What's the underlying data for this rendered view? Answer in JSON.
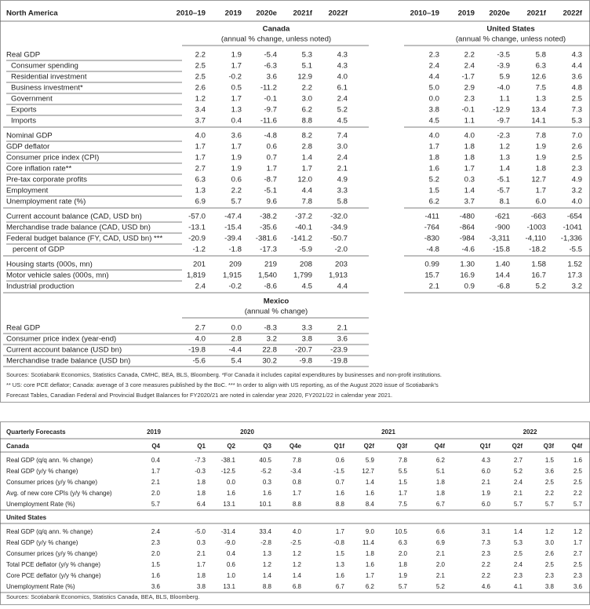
{
  "north_america": {
    "title": "North America",
    "columns": [
      "2010–19",
      "2019",
      "2020e",
      "2021f",
      "2022f"
    ],
    "canada": {
      "title": "Canada",
      "subtitle": "(annual % change, unless noted)"
    },
    "united_states": {
      "title": "United States",
      "subtitle": "(annual % change, unless noted)"
    },
    "groups": [
      [
        {
          "label": "Real GDP",
          "canada": [
            "2.2",
            "1.9",
            "-5.4",
            "5.3",
            "4.3"
          ],
          "us": [
            "2.3",
            "2.2",
            "-3.5",
            "5.8",
            "4.3"
          ]
        },
        {
          "label": "Consumer spending",
          "canada": [
            "2.5",
            "1.7",
            "-6.3",
            "5.1",
            "4.3"
          ],
          "us": [
            "2.4",
            "2.4",
            "-3.9",
            "6.3",
            "4.4"
          ]
        },
        {
          "label": "Residential investment",
          "canada": [
            "2.5",
            "-0.2",
            "3.6",
            "12.9",
            "4.0"
          ],
          "us": [
            "4.4",
            "-1.7",
            "5.9",
            "12.6",
            "3.6"
          ]
        },
        {
          "label": "Business investment*",
          "canada": [
            "2.6",
            "0.5",
            "-11.2",
            "2.2",
            "6.1"
          ],
          "us": [
            "5.0",
            "2.9",
            "-4.0",
            "7.5",
            "4.8"
          ]
        },
        {
          "label": "Government",
          "canada": [
            "1.2",
            "1.7",
            "-0.1",
            "3.0",
            "2.4"
          ],
          "us": [
            "0.0",
            "2.3",
            "1.1",
            "1.3",
            "2.5"
          ]
        },
        {
          "label": "Exports",
          "canada": [
            "3.4",
            "1.3",
            "-9.7",
            "6.2",
            "5.2"
          ],
          "us": [
            "3.8",
            "-0.1",
            "-12.9",
            "13.4",
            "7.3"
          ]
        },
        {
          "label": "Imports",
          "canada": [
            "3.7",
            "0.4",
            "-11.6",
            "8.8",
            "4.5"
          ],
          "us": [
            "4.5",
            "1.1",
            "-9.7",
            "14.1",
            "5.3"
          ]
        }
      ],
      [
        {
          "label": "Nominal GDP",
          "canada": [
            "4.0",
            "3.6",
            "-4.8",
            "8.2",
            "7.4"
          ],
          "us": [
            "4.0",
            "4.0",
            "-2.3",
            "7.8",
            "7.0"
          ]
        },
        {
          "label": "GDP deflator",
          "canada": [
            "1.7",
            "1.7",
            "0.6",
            "2.8",
            "3.0"
          ],
          "us": [
            "1.7",
            "1.8",
            "1.2",
            "1.9",
            "2.6"
          ]
        },
        {
          "label": "Consumer price index (CPI)",
          "canada": [
            "1.7",
            "1.9",
            "0.7",
            "1.4",
            "2.4"
          ],
          "us": [
            "1.8",
            "1.8",
            "1.3",
            "1.9",
            "2.5"
          ]
        },
        {
          "label": "Core inflation rate**",
          "canada": [
            "2.7",
            "1.9",
            "1.7",
            "1.7",
            "2.1"
          ],
          "us": [
            "1.6",
            "1.7",
            "1.4",
            "1.8",
            "2.3"
          ]
        },
        {
          "label": "Pre-tax corporate profits",
          "canada": [
            "6.3",
            "0.6",
            "-8.7",
            "12.0",
            "4.9"
          ],
          "us": [
            "5.2",
            "0.3",
            "-5.1",
            "12.7",
            "4.9"
          ]
        },
        {
          "label": "Employment",
          "canada": [
            "1.3",
            "2.2",
            "-5.1",
            "4.4",
            "3.3"
          ],
          "us": [
            "1.5",
            "1.4",
            "-5.7",
            "1.7",
            "3.2"
          ]
        },
        {
          "label": "Unemployment rate (%)",
          "canada": [
            "6.9",
            "5.7",
            "9.6",
            "7.8",
            "5.8"
          ],
          "us": [
            "6.2",
            "3.7",
            "8.1",
            "6.0",
            "4.0"
          ]
        }
      ],
      [
        {
          "label": "Current account balance (CAD, USD bn)",
          "canada": [
            "-57.0",
            "-47.4",
            "-38.2",
            "-37.2",
            "-32.0"
          ],
          "us": [
            "-411",
            "-480",
            "-621",
            "-663",
            "-654"
          ]
        },
        {
          "label": "Merchandise trade balance (CAD, USD bn)",
          "canada": [
            "-13.1",
            "-15.4",
            "-35.6",
            "-40.1",
            "-34.9"
          ],
          "us": [
            "-764",
            "-864",
            "-900",
            "-1003",
            "-1041"
          ]
        },
        {
          "label": "Federal budget balance (FY, CAD, USD bn) ***",
          "canada": [
            "-20.9",
            "-39.4",
            "-381.6",
            "-141.2",
            "-50.7"
          ],
          "us": [
            "-830",
            "-984",
            "-3,311",
            "-4,110",
            "-1,336"
          ]
        },
        {
          "label": "percent of GDP",
          "canada": [
            "-1.2",
            "-1.8",
            "-17.3",
            "-5.9",
            "-2.0"
          ],
          "us": [
            "-4.8",
            "-4.6",
            "-15.8",
            "-18.2",
            "-5.5"
          ]
        }
      ],
      [
        {
          "label": "Housing starts (000s, mn)",
          "canada": [
            "201",
            "209",
            "219",
            "208",
            "203"
          ],
          "us": [
            "0.99",
            "1.30",
            "1.40",
            "1.58",
            "1.52"
          ]
        },
        {
          "label": "Motor vehicle sales (000s, mn)",
          "canada": [
            "1,819",
            "1,915",
            "1,540",
            "1,799",
            "1,913"
          ],
          "us": [
            "15.7",
            "16.9",
            "14.4",
            "16.7",
            "17.3"
          ]
        },
        {
          "label": "Industrial production",
          "canada": [
            "2.4",
            "-0.2",
            "-8.6",
            "4.5",
            "4.4"
          ],
          "us": [
            "2.1",
            "0.9",
            "-6.8",
            "5.2",
            "3.2"
          ]
        }
      ]
    ],
    "mexico": {
      "title": "Mexico",
      "subtitle": "(annual % change)",
      "rows": [
        {
          "label": "Real GDP",
          "values": [
            "2.7",
            "0.0",
            "-8.3",
            "3.3",
            "2.1"
          ]
        },
        {
          "label": "Consumer price index (year-end)",
          "values": [
            "4.0",
            "2.8",
            "3.2",
            "3.8",
            "3.6"
          ]
        },
        {
          "label": "Current account balance (USD bn)",
          "values": [
            "-19.8",
            "-4.4",
            "22.8",
            "-20.7",
            "-23.9"
          ]
        },
        {
          "label": "Merchandise trade balance (USD bn)",
          "values": [
            "-5.6",
            "5.4",
            "30.2",
            "-9.8",
            "-19.8"
          ]
        }
      ]
    },
    "notes": [
      "Sources: Scotiabank Economics, Statistics Canada, CMHC, BEA, BLS, Bloomberg. *For Canada it includes capital expenditures by businesses and non-profit institutions.",
      "** US: core PCE deflator; Canada: average of 3 core measures published by the BoC. *** In order to align with US reporting, as of the August 2020 issue of Scotiabank's",
      "Forecast Tables, Canadian Federal and Provincial Budget Balances for FY2020/21 are noted in calendar year 2020, FY2021/22 in calendar year 2021."
    ]
  },
  "quarterly": {
    "title": "Quarterly Forecasts",
    "years": [
      "2019",
      "2020",
      "2021",
      "2022"
    ],
    "quarters": [
      "Q4",
      "Q1",
      "Q2",
      "Q3",
      "Q4e",
      "Q1f",
      "Q2f",
      "Q3f",
      "Q4f",
      "Q1f",
      "Q2f",
      "Q3f",
      "Q4f"
    ],
    "sections": [
      {
        "title": "Canada",
        "rows": [
          {
            "label": "Real GDP (q/q ann. % change)",
            "values": [
              "0.4",
              "-7.3",
              "-38.1",
              "40.5",
              "7.8",
              "0.6",
              "5.9",
              "7.8",
              "6.2",
              "4.3",
              "2.7",
              "1.5",
              "1.6"
            ]
          },
          {
            "label": "Real GDP (y/y % change)",
            "values": [
              "1.7",
              "-0.3",
              "-12.5",
              "-5.2",
              "-3.4",
              "-1.5",
              "12.7",
              "5.5",
              "5.1",
              "6.0",
              "5.2",
              "3.6",
              "2.5"
            ]
          },
          {
            "label": "Consumer prices (y/y % change)",
            "values": [
              "2.1",
              "1.8",
              "0.0",
              "0.3",
              "0.8",
              "0.7",
              "1.4",
              "1.5",
              "1.8",
              "2.1",
              "2.4",
              "2.5",
              "2.5"
            ]
          },
          {
            "label": "Avg. of new core CPIs (y/y % change)",
            "values": [
              "2.0",
              "1.8",
              "1.6",
              "1.6",
              "1.7",
              "1.6",
              "1.6",
              "1.7",
              "1.8",
              "1.9",
              "2.1",
              "2.2",
              "2.2"
            ]
          },
          {
            "label": "Unemployment Rate (%)",
            "values": [
              "5.7",
              "6.4",
              "13.1",
              "10.1",
              "8.8",
              "8.8",
              "8.4",
              "7.5",
              "6.7",
              "6.0",
              "5.7",
              "5.7",
              "5.7"
            ]
          }
        ]
      },
      {
        "title": "United States",
        "rows": [
          {
            "label": "Real GDP (q/q ann. % change)",
            "values": [
              "2.4",
              "-5.0",
              "-31.4",
              "33.4",
              "4.0",
              "1.7",
              "9.0",
              "10.5",
              "6.6",
              "3.1",
              "1.4",
              "1.2",
              "1.2"
            ]
          },
          {
            "label": "Real GDP (y/y % change)",
            "values": [
              "2.3",
              "0.3",
              "-9.0",
              "-2.8",
              "-2.5",
              "-0.8",
              "11.4",
              "6.3",
              "6.9",
              "7.3",
              "5.3",
              "3.0",
              "1.7"
            ]
          },
          {
            "label": "Consumer prices (y/y % change)",
            "values": [
              "2.0",
              "2.1",
              "0.4",
              "1.3",
              "1.2",
              "1.5",
              "1.8",
              "2.0",
              "2.1",
              "2.3",
              "2.5",
              "2.6",
              "2.7"
            ]
          },
          {
            "label": "Total PCE deflator (y/y % change)",
            "values": [
              "1.5",
              "1.7",
              "0.6",
              "1.2",
              "1.2",
              "1.3",
              "1.6",
              "1.8",
              "2.0",
              "2.2",
              "2.4",
              "2.5",
              "2.5"
            ]
          },
          {
            "label": "Core PCE deflator (y/y % change)",
            "values": [
              "1.6",
              "1.8",
              "1.0",
              "1.4",
              "1.4",
              "1.6",
              "1.7",
              "1.9",
              "2.1",
              "2.2",
              "2.3",
              "2.3",
              "2.3"
            ]
          },
          {
            "label": "Unemployment Rate (%)",
            "values": [
              "3.6",
              "3.8",
              "13.1",
              "8.8",
              "6.8",
              "6.7",
              "6.2",
              "5.7",
              "5.2",
              "4.6",
              "4.1",
              "3.8",
              "3.6"
            ]
          }
        ]
      }
    ],
    "source": "Sources: Scotiabank Economics, Statistics Canada, BEA, BLS, Bloomberg."
  }
}
